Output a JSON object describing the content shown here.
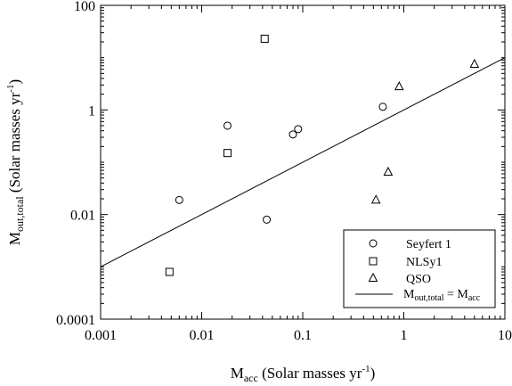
{
  "chart_data": {
    "type": "scatter",
    "x_scale": "log",
    "y_scale": "log",
    "xlim": [
      0.001,
      10
    ],
    "ylim": [
      0.0001,
      100
    ],
    "x_ticks": [
      {
        "value": 0.001,
        "label": "0.001"
      },
      {
        "value": 0.01,
        "label": "0.01"
      },
      {
        "value": 0.1,
        "label": "0.1"
      },
      {
        "value": 1,
        "label": "1"
      },
      {
        "value": 10,
        "label": "10"
      }
    ],
    "y_ticks": [
      {
        "value": 0.0001,
        "label": "0.0001"
      },
      {
        "value": 0.01,
        "label": "0.01"
      },
      {
        "value": 1,
        "label": "1"
      },
      {
        "value": 100,
        "label": "100"
      }
    ],
    "xlabel": {
      "main": "M",
      "sub": "acc",
      "rest": " (Solar masses yr",
      "sup": "-1",
      "close": ")"
    },
    "ylabel": {
      "main": "M",
      "sub": "out,total",
      "rest": " (Solar masses yr",
      "sup": "-1",
      "close": ")"
    },
    "grid": false,
    "legend_position": "bottom-right",
    "series": [
      {
        "name": "Seyfert 1",
        "marker": "circle",
        "points": [
          {
            "x": 0.006,
            "y": 0.019
          },
          {
            "x": 0.018,
            "y": 0.5
          },
          {
            "x": 0.044,
            "y": 0.008
          },
          {
            "x": 0.08,
            "y": 0.34
          },
          {
            "x": 0.09,
            "y": 0.43
          },
          {
            "x": 0.62,
            "y": 1.15
          }
        ]
      },
      {
        "name": "NLSy1",
        "marker": "square",
        "points": [
          {
            "x": 0.0048,
            "y": 0.0008
          },
          {
            "x": 0.018,
            "y": 0.15
          },
          {
            "x": 0.042,
            "y": 23
          }
        ]
      },
      {
        "name": "QSO",
        "marker": "triangle",
        "points": [
          {
            "x": 0.53,
            "y": 0.019
          },
          {
            "x": 0.7,
            "y": 0.065
          },
          {
            "x": 0.9,
            "y": 2.8
          },
          {
            "x": 5,
            "y": 7.5
          }
        ]
      }
    ],
    "reference_line": {
      "label": {
        "main": "M",
        "sub": "out,total",
        "eq": " = M",
        "sub2": "acc"
      },
      "x": [
        0.001,
        10
      ],
      "y": [
        0.001,
        10
      ]
    }
  }
}
